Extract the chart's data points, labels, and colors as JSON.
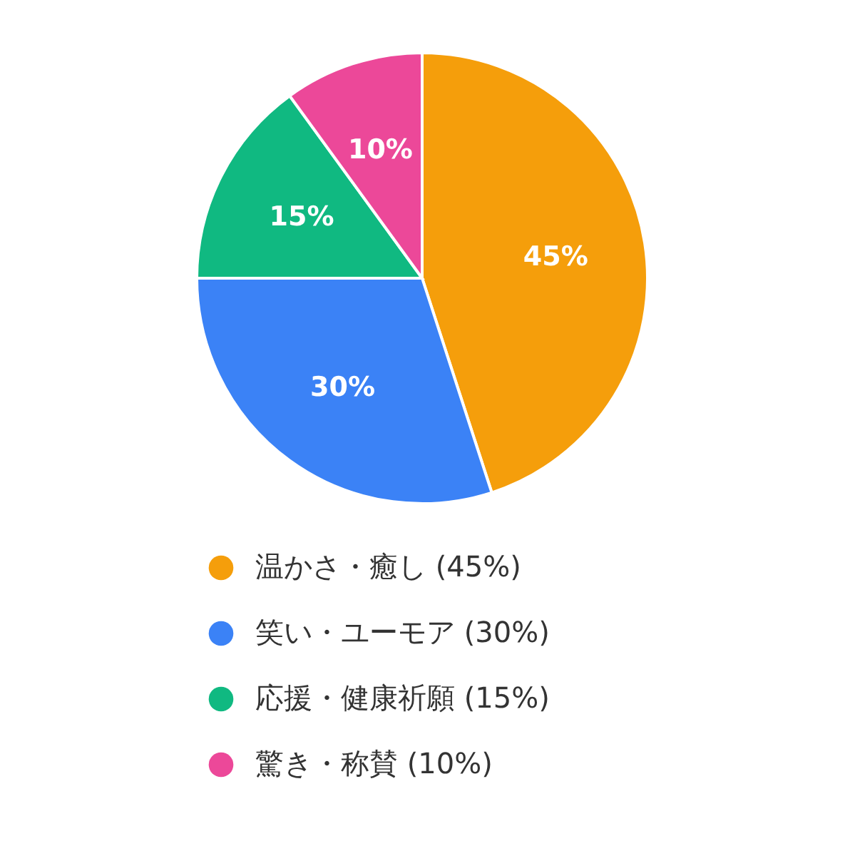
{
  "chart_data": {
    "type": "pie",
    "categories": [
      "温かさ・癒し (45%)",
      "笑い・ユーモア (30%)",
      "応援・健康祈願 (15%)",
      "驚き・称賛 (10%)"
    ],
    "values": [
      45,
      30,
      15,
      10
    ],
    "colors": [
      "#f59e0b",
      "#3b82f6",
      "#10b981",
      "#ec4899"
    ],
    "value_labels": [
      "45%",
      "30%",
      "15%",
      "10%"
    ],
    "legend": "bottom"
  }
}
